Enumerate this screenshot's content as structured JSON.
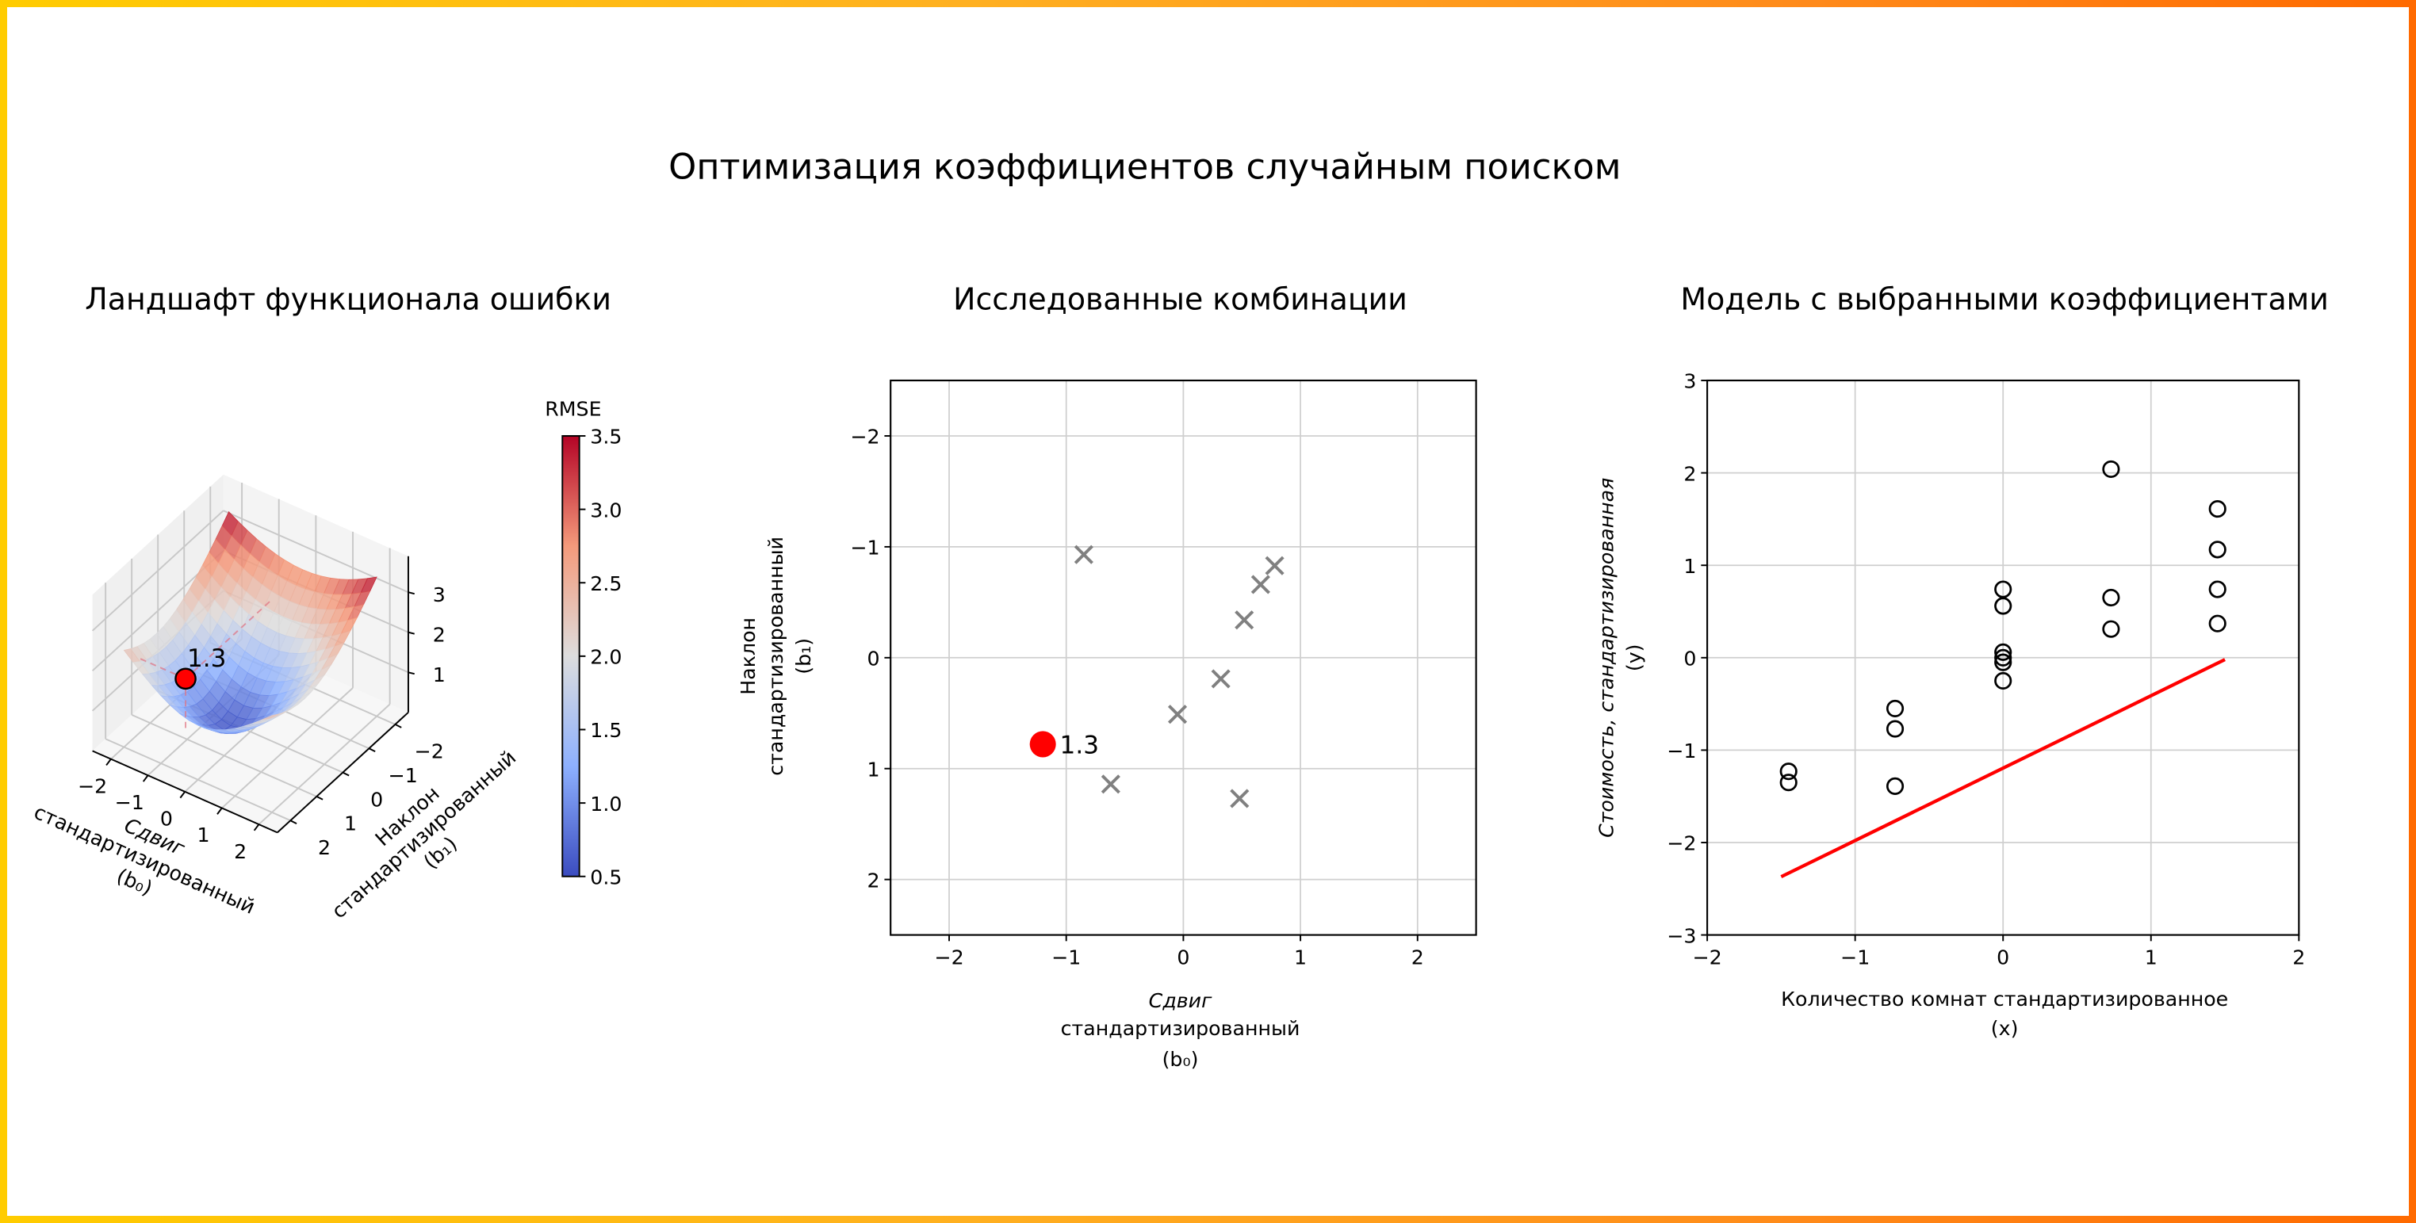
{
  "title": "Оптимизация коэффициентов случайным поиском",
  "colors": {
    "best": "#ff0000",
    "explored": "#808080",
    "model_line": "#ff0000",
    "frame_left": "#ffcc00",
    "frame_right": "#ff6a00"
  },
  "chart_data": [
    {
      "type": "surface3d",
      "title": "Ландшафт функционала ошибки",
      "xlabel": [
        "Сдвиг",
        "стандартизированный",
        "(b₀)"
      ],
      "ylabel": [
        "Наклон",
        "стандартизированный",
        "(b₁)"
      ],
      "xticks": [
        "−2",
        "−1",
        "0",
        "1",
        "2"
      ],
      "yticks": [
        "−2",
        "−1",
        "0",
        "1",
        "2"
      ],
      "zticks": [
        "1",
        "2",
        "3"
      ],
      "xlim": [
        -2,
        2
      ],
      "ylim": [
        -2,
        2
      ],
      "colormap": "coolwarm",
      "colorbar": {
        "label": "RMSE",
        "range": [
          0.5,
          3.5
        ],
        "ticks": [
          "0.5",
          "1.0",
          "1.5",
          "2.0",
          "2.5",
          "3.0",
          "3.5"
        ]
      },
      "best_point": {
        "b0": -1.2,
        "b1": 0.78,
        "rmse": 1.3,
        "label": "1.3"
      }
    },
    {
      "type": "scatter",
      "title": "Исследованные комбинации",
      "xlabel": [
        "Сдвиг",
        "стандартизированный",
        "(b₀)"
      ],
      "ylabel": [
        "Наклон",
        "стандартизированный",
        "(b₁)"
      ],
      "xlim": [
        -2.5,
        2.5
      ],
      "ylim": [
        2.5,
        -2.5
      ],
      "xticks": [
        "−2",
        "−1",
        "0",
        "1",
        "2"
      ],
      "yticks": [
        "−2",
        "−1",
        "0",
        "1",
        "2"
      ],
      "grid": true,
      "explored": [
        {
          "b0": -0.85,
          "b1": -0.93
        },
        {
          "b0": 0.78,
          "b1": -0.83
        },
        {
          "b0": 0.66,
          "b1": -0.66
        },
        {
          "b0": 0.52,
          "b1": -0.34
        },
        {
          "b0": 0.32,
          "b1": 0.19
        },
        {
          "b0": -0.05,
          "b1": 0.51
        },
        {
          "b0": -0.62,
          "b1": 1.14
        },
        {
          "b0": 0.48,
          "b1": 1.27
        }
      ],
      "best_point": {
        "b0": -1.2,
        "b1": 0.78,
        "label": "1.3"
      }
    },
    {
      "type": "scatter",
      "title": "Модель с выбранными коэффициентами",
      "xlabel": [
        "Количество комнат стандартизированное",
        "(x)"
      ],
      "ylabel": [
        "Стоимость, стандартизированная",
        "(y)"
      ],
      "xlim": [
        -2,
        2
      ],
      "ylim": [
        -3,
        3
      ],
      "xticks": [
        "−2",
        "−1",
        "0",
        "1",
        "2"
      ],
      "yticks": [
        "−3",
        "−2",
        "−1",
        "0",
        "1",
        "2",
        "3"
      ],
      "grid": true,
      "points": [
        {
          "x": -1.45,
          "y": -1.23
        },
        {
          "x": -1.45,
          "y": -1.35
        },
        {
          "x": -0.73,
          "y": -0.55
        },
        {
          "x": -0.73,
          "y": -0.77
        },
        {
          "x": -0.73,
          "y": -1.39
        },
        {
          "x": 0,
          "y": 0.74
        },
        {
          "x": 0,
          "y": 0.56
        },
        {
          "x": 0,
          "y": 0.06
        },
        {
          "x": 0,
          "y": 0.0
        },
        {
          "x": 0,
          "y": -0.05
        },
        {
          "x": 0,
          "y": -0.25
        },
        {
          "x": 0.73,
          "y": 2.04
        },
        {
          "x": 0.73,
          "y": 0.65
        },
        {
          "x": 0.73,
          "y": 0.31
        },
        {
          "x": 1.45,
          "y": 1.61
        },
        {
          "x": 1.45,
          "y": 1.17
        },
        {
          "x": 1.45,
          "y": 0.74
        },
        {
          "x": 1.45,
          "y": 0.37
        }
      ],
      "model_line": {
        "x": [
          -1.5,
          1.5
        ],
        "y": [
          -2.37,
          -0.02
        ]
      }
    }
  ]
}
